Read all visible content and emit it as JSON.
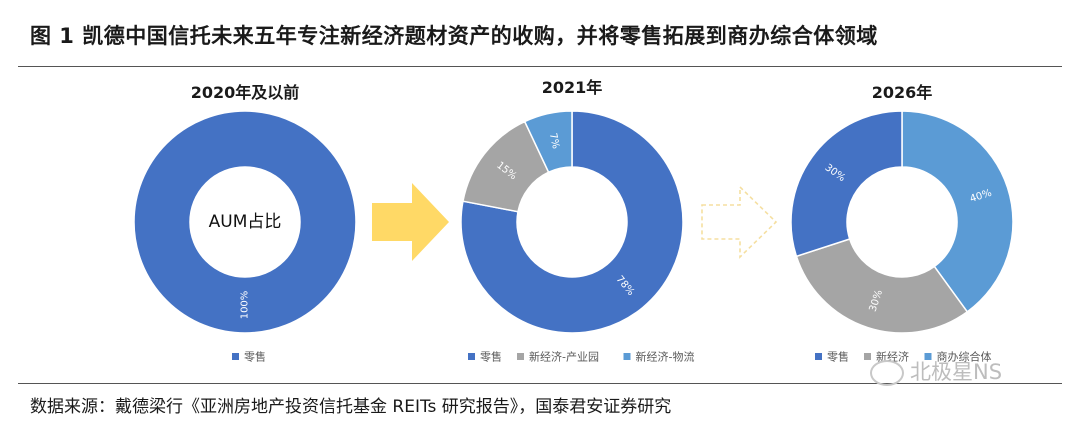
{
  "figure": {
    "title": "图 1 凯德中国信托未来五年专注新经济题材资产的收购，并将零售拓展到商办综合体领域",
    "source": "数据来源：戴德梁行《亚洲房地产投资信托基金 REITs 研究报告》，国泰君安证券研究",
    "watermark": "北极星NS"
  },
  "colors": {
    "retail": "#4472C4",
    "new_economy": "#A5A5A5",
    "logistics": "#5B9BD5",
    "arrow_solid": "#FFD966",
    "arrow_dashed": "#F5DFA0"
  },
  "chart_data": [
    {
      "type": "donut",
      "title": "2020年及以前",
      "center_label": "AUM占比",
      "slices": [
        {
          "label": "零售",
          "value": 100,
          "data_label": "100%",
          "color": "#4472C4"
        }
      ],
      "legend": [
        "零售"
      ],
      "legend_position": "bottom"
    },
    {
      "type": "donut",
      "title": "2021年",
      "slices": [
        {
          "label": "零售",
          "value": 78,
          "data_label": "78%",
          "color": "#4472C4"
        },
        {
          "label": "新经济-产业园",
          "value": 15,
          "data_label": "15%",
          "color": "#A5A5A5"
        },
        {
          "label": "新经济-物流",
          "value": 7,
          "data_label": "7%",
          "color": "#5B9BD5"
        }
      ],
      "legend": [
        "零售",
        "新经济-产业园",
        "新经济-物流"
      ],
      "legend_position": "bottom"
    },
    {
      "type": "donut",
      "title": "2026年",
      "slices": [
        {
          "label": "商办综合体",
          "value": 40,
          "data_label": "40%",
          "color": "#5B9BD5"
        },
        {
          "label": "新经济",
          "value": 30,
          "data_label": "30%",
          "color": "#A5A5A5"
        },
        {
          "label": "零售",
          "value": 30,
          "data_label": "30%",
          "color": "#4472C4"
        }
      ],
      "legend": [
        "零售",
        "新经济",
        "商办综合体"
      ],
      "legend_position": "bottom"
    }
  ]
}
